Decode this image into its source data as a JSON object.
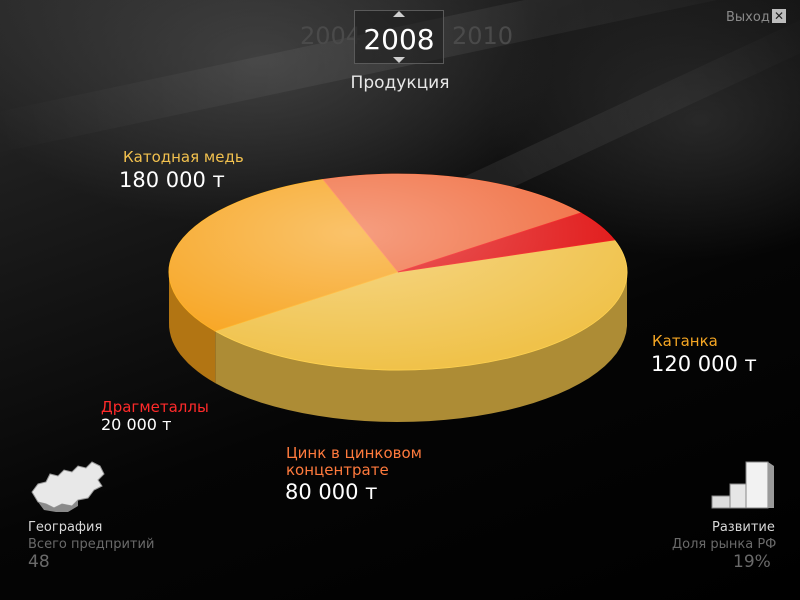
{
  "header": {
    "year_prev": "2004",
    "year_current": "2008",
    "year_next": "2010",
    "section_title": "Продукция",
    "exit_label": "Выход",
    "exit_icon": "close-icon"
  },
  "chart_data": {
    "type": "pie",
    "unit": "т",
    "slices": [
      {
        "name": "Катодная медь",
        "value": 180000,
        "value_label": "180 000 т",
        "color": "#f0c24a",
        "label_color": "#f2c14e"
      },
      {
        "name": "Катанка",
        "value": 120000,
        "value_label": "120 000 т",
        "color": "#f7a21a",
        "label_color": "#f5a623"
      },
      {
        "name": "Цинк в цинковом концентрате",
        "value": 80000,
        "value_label": "80 000 т",
        "color": "#f06a3c",
        "label_color": "#ff7a3d"
      },
      {
        "name": "Драгметаллы",
        "value": 20000,
        "value_label": "20 000 т",
        "color": "#e01010",
        "label_color": "#ff2a2a"
      }
    ]
  },
  "labels": {
    "cathode_name": "Катодная медь",
    "cathode_value": "180 000 т",
    "katanka_name": "Катанка",
    "katanka_value": "120 000 т",
    "zinc_name_line1": "Цинк в цинковом",
    "zinc_name_line2": "концентрате",
    "zinc_value": "80 000 т",
    "precious_name": "Драгметаллы",
    "precious_value": "20 000 т"
  },
  "footer": {
    "geo_title": "География",
    "geo_subtitle": "Всего предпритий",
    "geo_count": "48",
    "geo_icon": "russia-map-icon",
    "dev_title": "Развитие",
    "dev_subtitle": "Доля рынка РФ",
    "dev_share": "19%",
    "dev_icon": "stairs-icon"
  }
}
